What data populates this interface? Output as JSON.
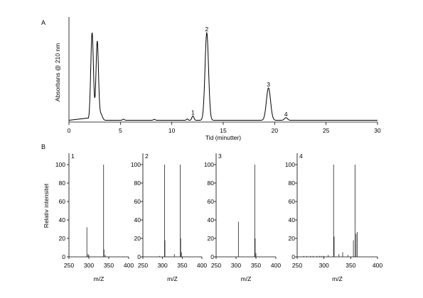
{
  "chart_data": [
    {
      "type": "line",
      "panel_label": "A",
      "xlabel": "Tid (minutter)",
      "ylabel": "Absorbans @ 210 nm",
      "xlim": [
        0,
        30
      ],
      "x_ticks": [
        0,
        5,
        10,
        15,
        20,
        25,
        30
      ],
      "ylim": [
        0,
        1.2
      ],
      "grid": false,
      "y_ticks_shown": false,
      "baseline": 0.02,
      "peaks": [
        {
          "rt": 2.25,
          "height": 1.0,
          "width": 0.13
        },
        {
          "rt": 2.75,
          "height": 0.9,
          "width": 0.12
        },
        {
          "rt": 3.1,
          "height": 0.07,
          "width": 0.15
        },
        {
          "rt": 5.3,
          "height": 0.012,
          "width": 0.1
        },
        {
          "rt": 8.3,
          "height": 0.01,
          "width": 0.1
        },
        {
          "rt": 11.5,
          "height": 0.015,
          "width": 0.08
        },
        {
          "rt": 12.05,
          "height": 0.05,
          "width": 0.1
        },
        {
          "rt": 13.4,
          "height": 1.0,
          "width": 0.17
        },
        {
          "rt": 19.4,
          "height": 0.37,
          "width": 0.2
        },
        {
          "rt": 21.1,
          "height": 0.03,
          "width": 0.15
        }
      ],
      "annotations": [
        {
          "label": "1",
          "x": 12.05,
          "y": 0.07
        },
        {
          "label": "2",
          "x": 13.4,
          "y": 1.02
        },
        {
          "label": "3",
          "x": 19.4,
          "y": 0.39
        },
        {
          "label": "4",
          "x": 21.1,
          "y": 0.05
        }
      ]
    },
    {
      "panel_label": "B",
      "ylabel": "Relativ intensitet",
      "xlabel": "m/Z",
      "subplots": [
        {
          "type": "bar",
          "label": "1",
          "xlabel": "m/Z",
          "xlim": [
            250,
            400
          ],
          "ylim": [
            0,
            100
          ],
          "x_ticks": [
            250,
            300,
            350,
            400
          ],
          "y_ticks": [
            0,
            20,
            40,
            60,
            80,
            100
          ],
          "mz": [
            295,
            298,
            300,
            337,
            338,
            341
          ],
          "intensity": [
            32,
            3,
            2,
            100,
            8,
            2
          ]
        },
        {
          "type": "bar",
          "label": "2",
          "xlabel": "m/Z",
          "xlim": [
            250,
            400
          ],
          "ylim": [
            0,
            100
          ],
          "x_ticks": [
            250,
            300,
            350,
            400
          ],
          "y_ticks": [
            0,
            20,
            40,
            60,
            80,
            100
          ],
          "mz": [
            292,
            305,
            306,
            330,
            345,
            346,
            348
          ],
          "intensity": [
            1,
            100,
            18,
            3,
            100,
            20,
            5
          ],
          "y_tick_labels_side": "right"
        },
        {
          "type": "bar",
          "label": "3",
          "xlabel": "m/Z",
          "xlim": [
            250,
            400
          ],
          "ylim": [
            0,
            100
          ],
          "x_ticks": [
            250,
            300,
            350,
            400
          ],
          "y_ticks": [
            0,
            20,
            40,
            60,
            80,
            100
          ],
          "mz": [
            306,
            347,
            348,
            350
          ],
          "intensity": [
            38,
            100,
            20,
            4
          ],
          "y_tick_labels_side": "right"
        },
        {
          "type": "bar",
          "label": "4",
          "xlabel": "m/Z",
          "xlim": [
            250,
            400
          ],
          "ylim": [
            0,
            100
          ],
          "x_ticks": [
            250,
            300,
            350,
            400
          ],
          "y_ticks": [
            0,
            20,
            40,
            60,
            80,
            100
          ],
          "mz": [
            262,
            268,
            275,
            280,
            287,
            292,
            296,
            300,
            308,
            318,
            319,
            328,
            335,
            345,
            355,
            358,
            360,
            362
          ],
          "intensity": [
            1,
            1,
            1,
            1,
            1,
            1,
            1,
            1,
            2,
            100,
            22,
            3,
            5,
            2,
            18,
            100,
            25,
            27
          ],
          "y_tick_labels_side": "right"
        }
      ]
    }
  ]
}
